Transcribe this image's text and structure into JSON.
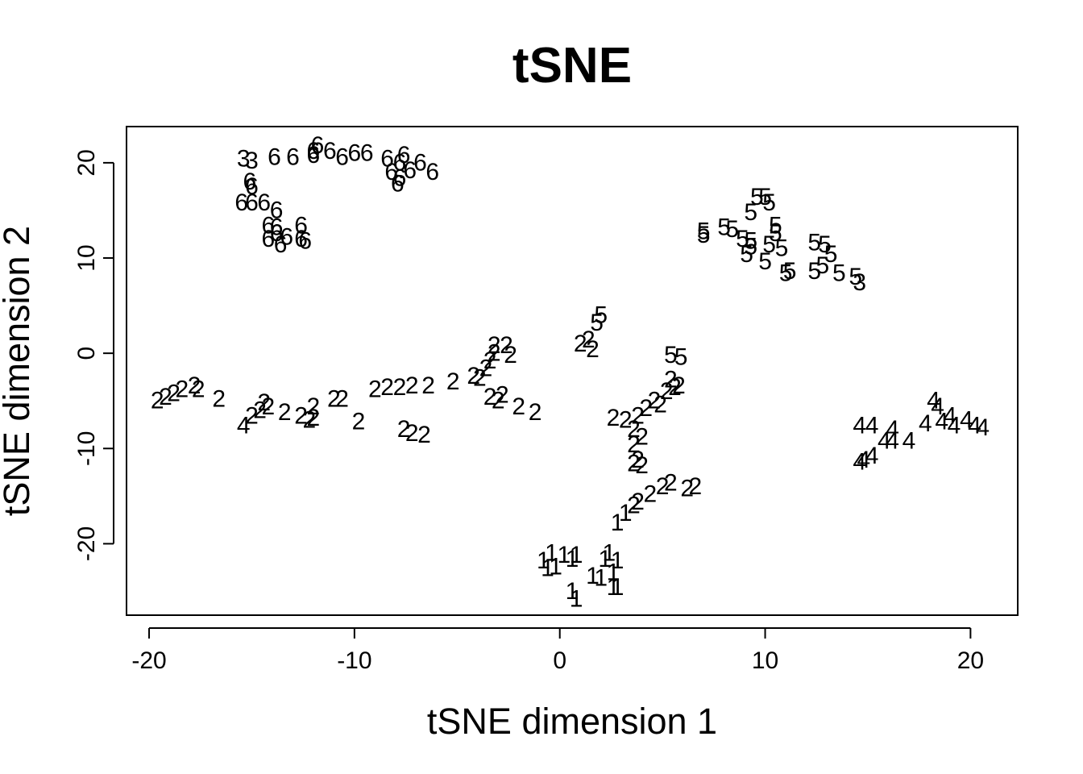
{
  "chart_data": {
    "type": "scatter",
    "title": "tSNE",
    "xlabel": "tSNE dimension 1",
    "ylabel": "tSNE dimension 2",
    "xlim": [
      -21.1,
      22.3
    ],
    "ylim": [
      -27.5,
      23.8
    ],
    "xticks": [
      -20,
      -10,
      0,
      10,
      20
    ],
    "yticks": [
      -20,
      -10,
      0,
      10,
      20
    ],
    "grid": false,
    "legend": "none",
    "marker": "class number text",
    "color": "#000000",
    "points": [
      {
        "x": -15.4,
        "y": 20.4,
        "label": "3"
      },
      {
        "x": -15.0,
        "y": 20.2,
        "label": "3"
      },
      {
        "x": -13.9,
        "y": 20.6,
        "label": "6"
      },
      {
        "x": -13.0,
        "y": 20.6,
        "label": "6"
      },
      {
        "x": -12.0,
        "y": 20.8,
        "label": "6"
      },
      {
        "x": -12.0,
        "y": 21.2,
        "label": "6"
      },
      {
        "x": -11.8,
        "y": 21.8,
        "label": "6"
      },
      {
        "x": -11.2,
        "y": 21.2,
        "label": "6"
      },
      {
        "x": -10.6,
        "y": 20.6,
        "label": "6"
      },
      {
        "x": -10.0,
        "y": 21.0,
        "label": "6"
      },
      {
        "x": -9.4,
        "y": 21.0,
        "label": "6"
      },
      {
        "x": -8.4,
        "y": 20.4,
        "label": "6"
      },
      {
        "x": -7.8,
        "y": 20.0,
        "label": "6"
      },
      {
        "x": -7.6,
        "y": 20.8,
        "label": "6"
      },
      {
        "x": -8.2,
        "y": 19.0,
        "label": "6"
      },
      {
        "x": -7.8,
        "y": 18.4,
        "label": "6"
      },
      {
        "x": -7.9,
        "y": 17.8,
        "label": "6"
      },
      {
        "x": -7.3,
        "y": 19.2,
        "label": "6"
      },
      {
        "x": -6.8,
        "y": 20.0,
        "label": "6"
      },
      {
        "x": -6.2,
        "y": 19.0,
        "label": "6"
      },
      {
        "x": -15.1,
        "y": 18.0,
        "label": "6"
      },
      {
        "x": -15.0,
        "y": 17.5,
        "label": "6"
      },
      {
        "x": -15.5,
        "y": 15.8,
        "label": "6"
      },
      {
        "x": -15.0,
        "y": 15.8,
        "label": "6"
      },
      {
        "x": -14.4,
        "y": 15.8,
        "label": "6"
      },
      {
        "x": -13.8,
        "y": 15.0,
        "label": "6"
      },
      {
        "x": -14.2,
        "y": 13.4,
        "label": "6"
      },
      {
        "x": -13.8,
        "y": 13.2,
        "label": "6"
      },
      {
        "x": -13.8,
        "y": 12.6,
        "label": "6"
      },
      {
        "x": -14.2,
        "y": 12.0,
        "label": "6"
      },
      {
        "x": -13.3,
        "y": 12.2,
        "label": "6"
      },
      {
        "x": -12.6,
        "y": 13.4,
        "label": "6"
      },
      {
        "x": -12.6,
        "y": 12.0,
        "label": "6"
      },
      {
        "x": -12.4,
        "y": 11.8,
        "label": "6"
      },
      {
        "x": -13.6,
        "y": 11.4,
        "label": "6"
      },
      {
        "x": 9.6,
        "y": 16.4,
        "label": "5"
      },
      {
        "x": 10.0,
        "y": 16.4,
        "label": "5"
      },
      {
        "x": 10.2,
        "y": 15.8,
        "label": "5"
      },
      {
        "x": 9.3,
        "y": 14.8,
        "label": "5"
      },
      {
        "x": 7.0,
        "y": 12.8,
        "label": "5"
      },
      {
        "x": 7.0,
        "y": 12.4,
        "label": "5"
      },
      {
        "x": 8.0,
        "y": 13.2,
        "label": "5"
      },
      {
        "x": 8.4,
        "y": 13.0,
        "label": "5"
      },
      {
        "x": 8.9,
        "y": 12.0,
        "label": "5"
      },
      {
        "x": 9.3,
        "y": 11.8,
        "label": "5"
      },
      {
        "x": 9.3,
        "y": 11.2,
        "label": "5"
      },
      {
        "x": 9.1,
        "y": 10.4,
        "label": "5"
      },
      {
        "x": 10.5,
        "y": 13.4,
        "label": "5"
      },
      {
        "x": 10.5,
        "y": 12.6,
        "label": "5"
      },
      {
        "x": 10.2,
        "y": 11.4,
        "label": "5"
      },
      {
        "x": 10.8,
        "y": 11.0,
        "label": "5"
      },
      {
        "x": 10.0,
        "y": 9.6,
        "label": "5"
      },
      {
        "x": 11.0,
        "y": 8.4,
        "label": "5"
      },
      {
        "x": 11.2,
        "y": 8.6,
        "label": "5"
      },
      {
        "x": 12.4,
        "y": 11.6,
        "label": "5"
      },
      {
        "x": 12.9,
        "y": 11.4,
        "label": "5"
      },
      {
        "x": 13.2,
        "y": 10.4,
        "label": "5"
      },
      {
        "x": 12.8,
        "y": 9.2,
        "label": "5"
      },
      {
        "x": 12.4,
        "y": 8.6,
        "label": "5"
      },
      {
        "x": 13.6,
        "y": 8.4,
        "label": "5"
      },
      {
        "x": 14.4,
        "y": 8.0,
        "label": "5"
      },
      {
        "x": 14.6,
        "y": 7.4,
        "label": "3"
      },
      {
        "x": 2.0,
        "y": 4.0,
        "label": "5"
      },
      {
        "x": 1.8,
        "y": 3.2,
        "label": "5"
      },
      {
        "x": 5.4,
        "y": -0.2,
        "label": "5"
      },
      {
        "x": 5.9,
        "y": -0.4,
        "label": "5"
      },
      {
        "x": -19.6,
        "y": -5.0,
        "label": "2"
      },
      {
        "x": -19.2,
        "y": -4.6,
        "label": "2"
      },
      {
        "x": -18.8,
        "y": -4.2,
        "label": "2"
      },
      {
        "x": -18.4,
        "y": -3.8,
        "label": "2"
      },
      {
        "x": -17.8,
        "y": -3.4,
        "label": "2"
      },
      {
        "x": -17.6,
        "y": -3.8,
        "label": "2"
      },
      {
        "x": -16.6,
        "y": -4.8,
        "label": "2"
      },
      {
        "x": -15.4,
        "y": -7.6,
        "label": "4"
      },
      {
        "x": -15.0,
        "y": -6.6,
        "label": "2"
      },
      {
        "x": -14.6,
        "y": -6.0,
        "label": "2"
      },
      {
        "x": -14.4,
        "y": -5.2,
        "label": "2"
      },
      {
        "x": -14.2,
        "y": -5.6,
        "label": "2"
      },
      {
        "x": -13.4,
        "y": -6.2,
        "label": "2"
      },
      {
        "x": -12.6,
        "y": -6.6,
        "label": "2"
      },
      {
        "x": -12.2,
        "y": -7.0,
        "label": "2"
      },
      {
        "x": -12.0,
        "y": -6.8,
        "label": "2"
      },
      {
        "x": -12.0,
        "y": -5.6,
        "label": "2"
      },
      {
        "x": -11.0,
        "y": -4.8,
        "label": "2"
      },
      {
        "x": -10.6,
        "y": -4.8,
        "label": "2"
      },
      {
        "x": -9.8,
        "y": -7.2,
        "label": "2"
      },
      {
        "x": -9.0,
        "y": -3.8,
        "label": "2"
      },
      {
        "x": -8.4,
        "y": -3.6,
        "label": "2"
      },
      {
        "x": -7.8,
        "y": -3.6,
        "label": "2"
      },
      {
        "x": -7.2,
        "y": -3.4,
        "label": "2"
      },
      {
        "x": -6.4,
        "y": -3.4,
        "label": "2"
      },
      {
        "x": -5.2,
        "y": -3.0,
        "label": "2"
      },
      {
        "x": -7.6,
        "y": -8.0,
        "label": "2"
      },
      {
        "x": -7.2,
        "y": -8.4,
        "label": "2"
      },
      {
        "x": -6.6,
        "y": -8.6,
        "label": "2"
      },
      {
        "x": -4.2,
        "y": -2.4,
        "label": "2"
      },
      {
        "x": -3.9,
        "y": -2.6,
        "label": "2"
      },
      {
        "x": -3.6,
        "y": -1.6,
        "label": "2"
      },
      {
        "x": -3.4,
        "y": -0.8,
        "label": "2"
      },
      {
        "x": -3.2,
        "y": 0.0,
        "label": "2"
      },
      {
        "x": -3.2,
        "y": 0.8,
        "label": "2"
      },
      {
        "x": -2.6,
        "y": 0.8,
        "label": "2"
      },
      {
        "x": -2.4,
        "y": -0.2,
        "label": "2"
      },
      {
        "x": -3.4,
        "y": -4.6,
        "label": "2"
      },
      {
        "x": -3.0,
        "y": -5.0,
        "label": "2"
      },
      {
        "x": -2.8,
        "y": -4.4,
        "label": "2"
      },
      {
        "x": -2.0,
        "y": -5.6,
        "label": "2"
      },
      {
        "x": -1.2,
        "y": -6.2,
        "label": "2"
      },
      {
        "x": 1.0,
        "y": 1.0,
        "label": "2"
      },
      {
        "x": 1.4,
        "y": 1.4,
        "label": "2"
      },
      {
        "x": 1.6,
        "y": 0.4,
        "label": "2"
      },
      {
        "x": 2.6,
        "y": -6.8,
        "label": "2"
      },
      {
        "x": 3.2,
        "y": -7.0,
        "label": "2"
      },
      {
        "x": 3.8,
        "y": -6.6,
        "label": "2"
      },
      {
        "x": 3.6,
        "y": -8.0,
        "label": "2"
      },
      {
        "x": 4.0,
        "y": -8.8,
        "label": "2"
      },
      {
        "x": 3.6,
        "y": -9.6,
        "label": "2"
      },
      {
        "x": 3.8,
        "y": -11.2,
        "label": "2"
      },
      {
        "x": 3.6,
        "y": -11.6,
        "label": "2"
      },
      {
        "x": 4.0,
        "y": -11.8,
        "label": "2"
      },
      {
        "x": 4.2,
        "y": -5.8,
        "label": "2"
      },
      {
        "x": 4.6,
        "y": -5.0,
        "label": "2"
      },
      {
        "x": 4.9,
        "y": -5.4,
        "label": "2"
      },
      {
        "x": 5.2,
        "y": -4.0,
        "label": "2"
      },
      {
        "x": 5.6,
        "y": -3.6,
        "label": "2"
      },
      {
        "x": 5.8,
        "y": -3.4,
        "label": "2"
      },
      {
        "x": 5.4,
        "y": -2.8,
        "label": "2"
      },
      {
        "x": 3.6,
        "y": -16.0,
        "label": "2"
      },
      {
        "x": 3.8,
        "y": -15.6,
        "label": "2"
      },
      {
        "x": 4.4,
        "y": -14.8,
        "label": "2"
      },
      {
        "x": 5.0,
        "y": -14.0,
        "label": "2"
      },
      {
        "x": 5.4,
        "y": -13.6,
        "label": "2"
      },
      {
        "x": 6.2,
        "y": -14.2,
        "label": "2"
      },
      {
        "x": 6.6,
        "y": -14.0,
        "label": "2"
      },
      {
        "x": 18.2,
        "y": -5.0,
        "label": "4"
      },
      {
        "x": 18.4,
        "y": -5.6,
        "label": "4"
      },
      {
        "x": 14.6,
        "y": -7.6,
        "label": "4"
      },
      {
        "x": 15.2,
        "y": -7.6,
        "label": "4"
      },
      {
        "x": 16.2,
        "y": -8.0,
        "label": "4"
      },
      {
        "x": 15.8,
        "y": -9.2,
        "label": "4"
      },
      {
        "x": 16.2,
        "y": -9.2,
        "label": "4"
      },
      {
        "x": 17.0,
        "y": -9.2,
        "label": "4"
      },
      {
        "x": 14.6,
        "y": -11.4,
        "label": "4"
      },
      {
        "x": 14.8,
        "y": -11.2,
        "label": "4"
      },
      {
        "x": 15.2,
        "y": -10.8,
        "label": "4"
      },
      {
        "x": 17.8,
        "y": -7.4,
        "label": "4"
      },
      {
        "x": 18.6,
        "y": -7.2,
        "label": "4"
      },
      {
        "x": 19.0,
        "y": -6.6,
        "label": "4"
      },
      {
        "x": 19.2,
        "y": -7.6,
        "label": "4"
      },
      {
        "x": 19.8,
        "y": -7.0,
        "label": "4"
      },
      {
        "x": 20.2,
        "y": -7.6,
        "label": "4"
      },
      {
        "x": 20.6,
        "y": -7.8,
        "label": "4"
      },
      {
        "x": 2.8,
        "y": -17.8,
        "label": "1"
      },
      {
        "x": 3.2,
        "y": -16.8,
        "label": "1"
      },
      {
        "x": -0.8,
        "y": -21.8,
        "label": "1"
      },
      {
        "x": -0.6,
        "y": -22.6,
        "label": "1"
      },
      {
        "x": -0.4,
        "y": -21.0,
        "label": "1"
      },
      {
        "x": -0.2,
        "y": -22.4,
        "label": "1"
      },
      {
        "x": 0.2,
        "y": -21.2,
        "label": "1"
      },
      {
        "x": 0.6,
        "y": -21.6,
        "label": "1"
      },
      {
        "x": 0.8,
        "y": -21.2,
        "label": "1"
      },
      {
        "x": 2.2,
        "y": -21.6,
        "label": "1"
      },
      {
        "x": 2.4,
        "y": -21.0,
        "label": "1"
      },
      {
        "x": 2.8,
        "y": -21.8,
        "label": "1"
      },
      {
        "x": 1.6,
        "y": -23.4,
        "label": "1"
      },
      {
        "x": 2.0,
        "y": -23.6,
        "label": "1"
      },
      {
        "x": 2.6,
        "y": -23.0,
        "label": "1"
      },
      {
        "x": 2.6,
        "y": -24.6,
        "label": "1"
      },
      {
        "x": 2.8,
        "y": -24.6,
        "label": "1"
      },
      {
        "x": 0.6,
        "y": -25.0,
        "label": "1"
      },
      {
        "x": 0.8,
        "y": -25.8,
        "label": "1"
      }
    ]
  }
}
